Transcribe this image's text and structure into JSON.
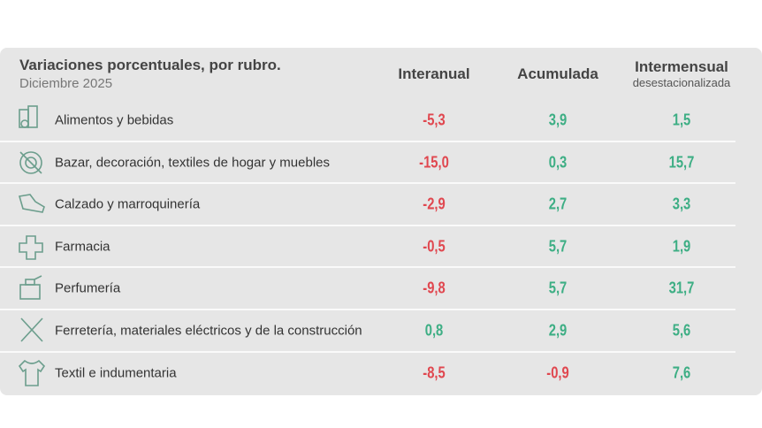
{
  "header": {
    "title": "Variaciones porcentuales, por rubro.",
    "subtitle": "Diciembre 2025"
  },
  "columns": [
    {
      "label": "Interanual"
    },
    {
      "label": "Acumulada"
    },
    {
      "label": "Intermensual",
      "sublabel": "desestacionalizada"
    }
  ],
  "rows": [
    {
      "label": "Alimentos y bebidas",
      "values": [
        "-5,3",
        "3,9",
        "1,5"
      ]
    },
    {
      "label": "Bazar, decoración, textiles de hogar y muebles",
      "values": [
        "-15,0",
        "0,3",
        "15,7"
      ]
    },
    {
      "label": "Calzado y marroquinería",
      "values": [
        "-2,9",
        "2,7",
        "3,3"
      ]
    },
    {
      "label": "Farmacia",
      "values": [
        "-0,5",
        "5,7",
        "1,9"
      ]
    },
    {
      "label": "Perfumería",
      "values": [
        "-9,8",
        "5,7",
        "31,7"
      ]
    },
    {
      "label": "Ferretería, materiales eléctricos y de la construcción",
      "values": [
        "0,8",
        "2,9",
        "5,6"
      ]
    },
    {
      "label": "Textil e indumentaria",
      "values": [
        "-8,5",
        "-0,9",
        "7,6"
      ]
    }
  ],
  "colors": {
    "negative": "#e0474f",
    "positive": "#3dae84"
  }
}
